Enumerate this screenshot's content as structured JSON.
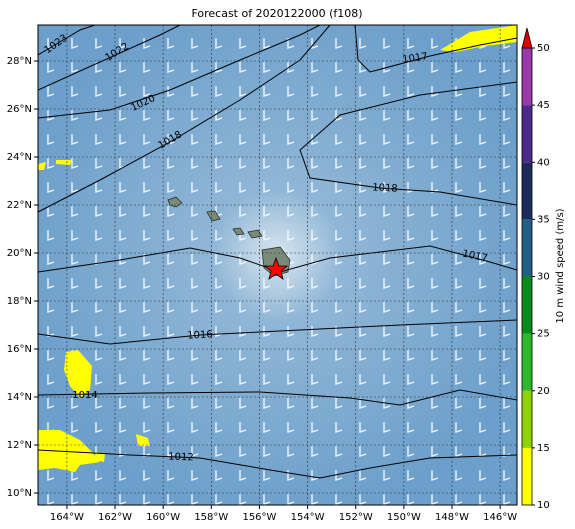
{
  "map": {
    "title": "Forecast of 2020122000 (f108)",
    "lon_range": [
      -165.2,
      -145.3
    ],
    "lat_range": [
      9.5,
      29.5
    ],
    "lon_ticks": [
      {
        "value": -164,
        "label": "164°W"
      },
      {
        "value": -162,
        "label": "162°W"
      },
      {
        "value": -160,
        "label": "160°W"
      },
      {
        "value": -158,
        "label": "158°W"
      },
      {
        "value": -156,
        "label": "156°W"
      },
      {
        "value": -154,
        "label": "154°W"
      },
      {
        "value": -152,
        "label": "152°W"
      },
      {
        "value": -150,
        "label": "150°W"
      },
      {
        "value": -148,
        "label": "148°W"
      },
      {
        "value": -146,
        "label": "146°W"
      }
    ],
    "lat_ticks": [
      {
        "value": 10,
        "label": "10°N"
      },
      {
        "value": 12,
        "label": "12°N"
      },
      {
        "value": 14,
        "label": "14°N"
      },
      {
        "value": 16,
        "label": "16°N"
      },
      {
        "value": 18,
        "label": "18°N"
      },
      {
        "value": 20,
        "label": "20°N"
      },
      {
        "value": 22,
        "label": "22°N"
      },
      {
        "value": 24,
        "label": "24°N"
      },
      {
        "value": 26,
        "label": "26°N"
      },
      {
        "value": 28,
        "label": "28°N"
      }
    ],
    "contour_labels": [
      "1023",
      "1022",
      "1020",
      "1018",
      "1017",
      "1018",
      "1017",
      "1016",
      "1014",
      "1012"
    ],
    "colorbar": {
      "label": "10 m wind speed (m/s)",
      "range": [
        10,
        50
      ],
      "ticks": [
        10,
        15,
        20,
        25,
        30,
        35,
        40,
        45,
        50
      ],
      "colors": [
        "#ffff00",
        "#8fd400",
        "#2db82d",
        "#0a8a1a",
        "#215f86",
        "#1c2c5a",
        "#4a2a8a",
        "#9a3aa8"
      ],
      "extend_color": "#e00000"
    }
  }
}
